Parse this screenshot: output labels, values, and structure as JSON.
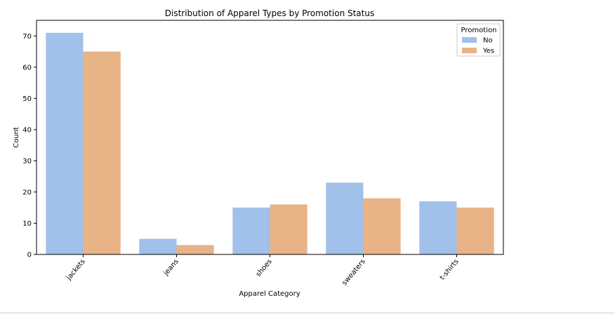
{
  "chart_data": {
    "type": "bar",
    "title": "Distribution of Apparel Types by Promotion Status",
    "xlabel": "Apparel Category",
    "ylabel": "Count",
    "categories": [
      "jackets",
      "jeans",
      "shoes",
      "sweaters",
      "t-shirts"
    ],
    "series": [
      {
        "name": "No",
        "color": "#a1c0ea",
        "values": [
          71,
          5,
          15,
          23,
          17
        ]
      },
      {
        "name": "Yes",
        "color": "#e9b388",
        "values": [
          65,
          3,
          16,
          18,
          15
        ]
      }
    ],
    "ylim": [
      0,
      75
    ],
    "yticks": [
      0,
      10,
      20,
      30,
      40,
      50,
      60,
      70
    ],
    "legend": {
      "title": "Promotion",
      "placement": "top-right"
    },
    "grid": false
  }
}
